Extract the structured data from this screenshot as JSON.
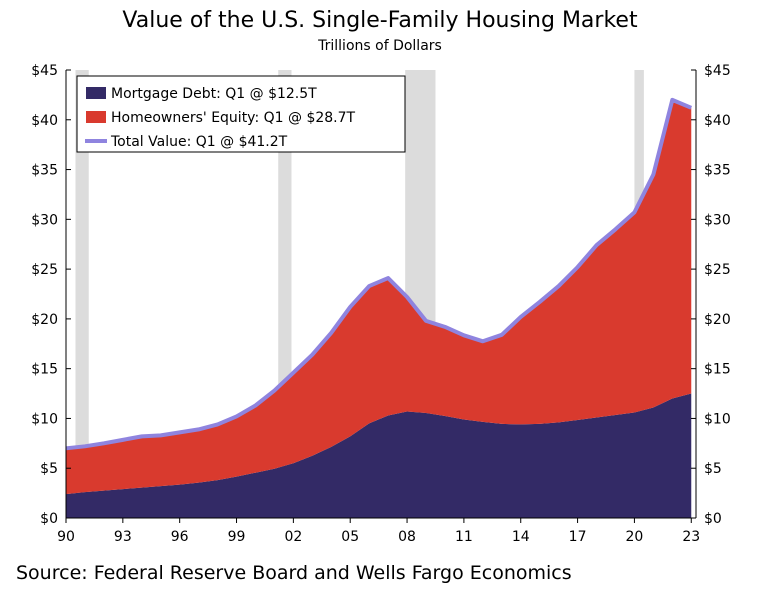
{
  "title": "Value of the U.S. Single-Family Housing Market",
  "subtitle": "Trillions of Dollars",
  "source": "Source: Federal Reserve Board and Wells Fargo Economics",
  "chart_data": {
    "type": "area",
    "xlim": [
      1990,
      2023.25
    ],
    "ylim": [
      0,
      45
    ],
    "y_ticks": [
      0,
      5,
      10,
      15,
      20,
      25,
      30,
      35,
      40,
      45
    ],
    "y_tick_labels": [
      "$0",
      "$5",
      "$10",
      "$15",
      "$20",
      "$25",
      "$30",
      "$35",
      "$40",
      "$45"
    ],
    "x_ticks": [
      1990,
      1993,
      1996,
      1999,
      2002,
      2005,
      2008,
      2011,
      2014,
      2017,
      2020,
      2023
    ],
    "x_tick_labels": [
      "90",
      "93",
      "96",
      "99",
      "02",
      "05",
      "08",
      "11",
      "14",
      "17",
      "20",
      "23"
    ],
    "right_axis_mirrors_left": true,
    "grid": false,
    "legend_position": "top-left",
    "recessions": [
      [
        1990.5,
        1991.2
      ],
      [
        2001.2,
        2001.9
      ],
      [
        2007.9,
        2009.5
      ],
      [
        2020.0,
        2020.5
      ]
    ],
    "series": [
      {
        "name": "Mortgage Debt: Q1 @ $12.5T",
        "color": "#332a66",
        "kind": "area",
        "x": [
          1990,
          1991,
          1992,
          1993,
          1994,
          1995,
          1996,
          1997,
          1998,
          1999,
          2000,
          2001,
          2002,
          2003,
          2004,
          2005,
          2006,
          2007,
          2008,
          2009,
          2010,
          2011,
          2012,
          2013,
          2014,
          2015,
          2016,
          2017,
          2018,
          2019,
          2020,
          2021,
          2022,
          2023
        ],
        "values": [
          2.4,
          2.6,
          2.75,
          2.9,
          3.05,
          3.2,
          3.35,
          3.55,
          3.8,
          4.15,
          4.55,
          4.95,
          5.5,
          6.25,
          7.15,
          8.2,
          9.5,
          10.3,
          10.7,
          10.55,
          10.25,
          9.9,
          9.65,
          9.45,
          9.4,
          9.45,
          9.6,
          9.85,
          10.1,
          10.35,
          10.6,
          11.1,
          12.0,
          12.5
        ]
      },
      {
        "name": "Homeowners' Equity: Q1 @ $28.7T",
        "color": "#d93a2e",
        "kind": "area",
        "x": [
          1990,
          1991,
          1992,
          1993,
          1994,
          1995,
          1996,
          1997,
          1998,
          1999,
          2000,
          2001,
          2002,
          2003,
          2004,
          2005,
          2006,
          2007,
          2008,
          2009,
          2010,
          2011,
          2012,
          2013,
          2014,
          2015,
          2016,
          2017,
          2018,
          2019,
          2020,
          2021,
          2022,
          2023
        ],
        "values": [
          4.6,
          4.6,
          4.75,
          4.95,
          5.15,
          5.1,
          5.25,
          5.35,
          5.6,
          6.05,
          6.75,
          7.85,
          9.1,
          10.15,
          11.45,
          13.0,
          13.8,
          13.8,
          11.5,
          9.25,
          8.95,
          8.45,
          8.1,
          8.95,
          10.8,
          12.25,
          13.7,
          15.35,
          17.3,
          18.65,
          20.1,
          23.4,
          30.0,
          28.7
        ]
      },
      {
        "name": "Total Value: Q1 @ $41.2T",
        "color": "#8f84df",
        "kind": "line",
        "x": [
          1990,
          1991,
          1992,
          1993,
          1994,
          1995,
          1996,
          1997,
          1998,
          1999,
          2000,
          2001,
          2002,
          2003,
          2004,
          2005,
          2006,
          2007,
          2008,
          2009,
          2010,
          2011,
          2012,
          2013,
          2014,
          2015,
          2016,
          2017,
          2018,
          2019,
          2020,
          2021,
          2022,
          2023
        ],
        "values": [
          7.0,
          7.2,
          7.5,
          7.85,
          8.2,
          8.3,
          8.6,
          8.9,
          9.4,
          10.2,
          11.3,
          12.8,
          14.6,
          16.4,
          18.6,
          21.2,
          23.3,
          24.1,
          22.2,
          19.8,
          19.2,
          18.35,
          17.75,
          18.4,
          20.2,
          21.7,
          23.3,
          25.2,
          27.4,
          29.0,
          30.7,
          34.5,
          42.0,
          41.2
        ]
      }
    ]
  }
}
